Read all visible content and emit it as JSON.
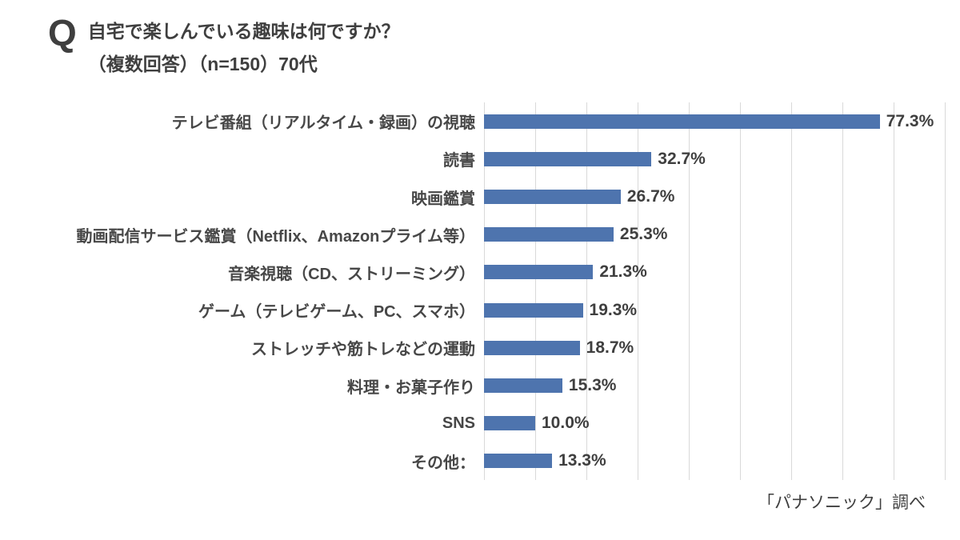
{
  "header": {
    "q_mark": "Q",
    "title_line1": "自宅で楽しんでいる趣味は何ですか？",
    "title_line2": "（複数回答）（n=150）70代"
  },
  "chart_data": {
    "type": "bar",
    "orientation": "horizontal",
    "title": "自宅で楽しんでいる趣味は何ですか？（複数回答）（n=150）70代",
    "categories": [
      "テレビ番組（リアルタイム・録画）の視聴",
      "読書",
      "映画鑑賞",
      "動画配信サービス鑑賞（Netflix、Amazonプライム等）",
      "音楽視聴（CD、ストリーミング）",
      "ゲーム（テレビゲーム、PC、スマホ）",
      "ストレッチや筋トレなどの運動",
      "料理・お菓子作り",
      "SNS",
      "その他："
    ],
    "values": [
      77.3,
      32.7,
      26.7,
      25.3,
      21.3,
      19.3,
      18.7,
      15.3,
      10.0,
      13.3
    ],
    "value_labels": [
      "77.3%",
      "32.7%",
      "26.7%",
      "25.3%",
      "21.3%",
      "19.3%",
      "18.7%",
      "15.3%",
      "10.0%",
      "13.3%"
    ],
    "xlabel": "",
    "ylabel": "",
    "xlim": [
      0,
      90
    ],
    "gridline_interval": 10,
    "grid": true,
    "legend": false,
    "bar_color": "#4e74ae",
    "grid_color": "#d9d9d9",
    "text_color": "#3f3f3f"
  },
  "footer": {
    "source": "「パナソニック」調べ"
  }
}
